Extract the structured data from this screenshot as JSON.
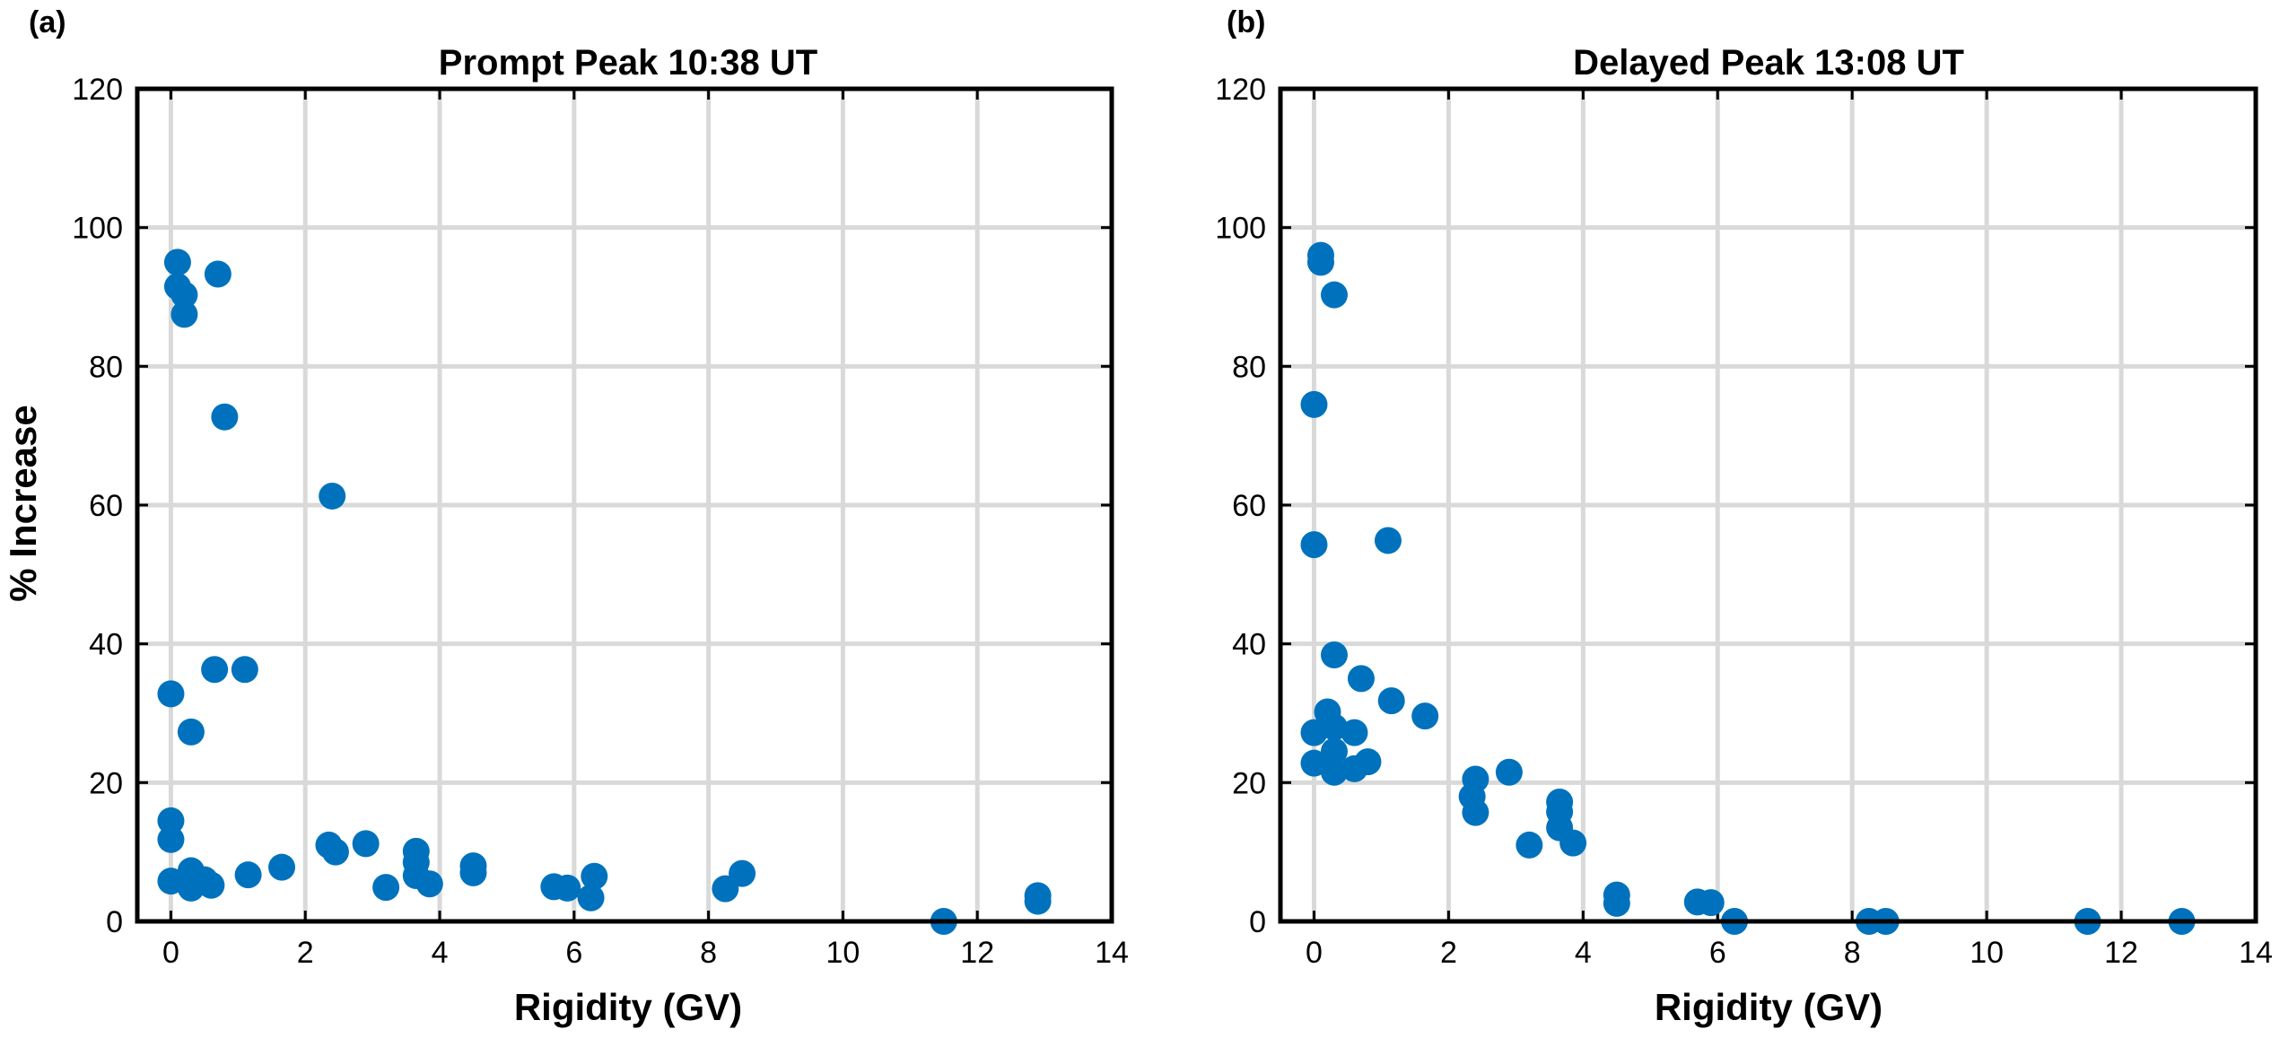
{
  "style": {
    "marker_color": "#0072BD",
    "grid_color": "#d9d9d9",
    "axis_color": "#000000"
  },
  "chart_data": [
    {
      "type": "scatter",
      "panel_label": "(a)",
      "title": "Prompt Peak 10:38 UT",
      "xlabel": "Rigidity (GV)",
      "ylabel": "% Increase",
      "xlim": [
        -0.5,
        14
      ],
      "ylim": [
        0,
        120
      ],
      "xticks": [
        0,
        2,
        4,
        6,
        8,
        10,
        12,
        14
      ],
      "yticks": [
        0,
        20,
        40,
        60,
        80,
        100,
        120
      ],
      "grid": true,
      "series": [
        {
          "points": [
            [
              0.1,
              95
            ],
            [
              0.1,
              91.5
            ],
            [
              0.2,
              90.3
            ],
            [
              0.2,
              87.5
            ],
            [
              0.7,
              93.3
            ],
            [
              0.8,
              72.7
            ],
            [
              2.4,
              61.3
            ],
            [
              0.0,
              32.8
            ],
            [
              0.3,
              27.3
            ],
            [
              0.65,
              36.3
            ],
            [
              1.1,
              36.3
            ],
            [
              0.0,
              14.5
            ],
            [
              0.0,
              11.8
            ],
            [
              0.0,
              5.8
            ],
            [
              0.3,
              7.3
            ],
            [
              0.3,
              4.8
            ],
            [
              0.5,
              6.0
            ],
            [
              0.6,
              5.2
            ],
            [
              1.15,
              6.7
            ],
            [
              1.65,
              7.8
            ],
            [
              2.35,
              11.0
            ],
            [
              2.45,
              10.0
            ],
            [
              2.9,
              11.2
            ],
            [
              3.2,
              4.9
            ],
            [
              3.65,
              10.1
            ],
            [
              3.65,
              8.5
            ],
            [
              3.65,
              6.6
            ],
            [
              3.85,
              5.4
            ],
            [
              4.5,
              8.0
            ],
            [
              4.5,
              7.0
            ],
            [
              5.7,
              5.0
            ],
            [
              5.9,
              4.8
            ],
            [
              6.3,
              6.5
            ],
            [
              6.25,
              3.4
            ],
            [
              8.25,
              4.7
            ],
            [
              8.5,
              6.9
            ],
            [
              11.5,
              0.0
            ],
            [
              12.9,
              3.7
            ],
            [
              12.9,
              2.9
            ]
          ]
        }
      ]
    },
    {
      "type": "scatter",
      "panel_label": "(b)",
      "title": "Delayed Peak 13:08 UT",
      "xlabel": "Rigidity (GV)",
      "ylabel": "",
      "xlim": [
        -0.5,
        14
      ],
      "ylim": [
        0,
        120
      ],
      "xticks": [
        0,
        2,
        4,
        6,
        8,
        10,
        12,
        14
      ],
      "yticks": [
        0,
        20,
        40,
        60,
        80,
        100,
        120
      ],
      "grid": true,
      "series": [
        {
          "points": [
            [
              0.1,
              96.0
            ],
            [
              0.1,
              95.0
            ],
            [
              0.3,
              90.3
            ],
            [
              0.0,
              74.5
            ],
            [
              0.0,
              54.3
            ],
            [
              1.1,
              54.9
            ],
            [
              0.3,
              38.4
            ],
            [
              0.7,
              35.0
            ],
            [
              1.15,
              31.8
            ],
            [
              1.65,
              29.6
            ],
            [
              0.0,
              27.2
            ],
            [
              0.2,
              30.2
            ],
            [
              0.3,
              28.0
            ],
            [
              0.6,
              27.2
            ],
            [
              0.0,
              22.8
            ],
            [
              0.3,
              24.5
            ],
            [
              0.3,
              21.5
            ],
            [
              0.6,
              22.0
            ],
            [
              0.8,
              23.0
            ],
            [
              2.4,
              20.5
            ],
            [
              2.35,
              18.0
            ],
            [
              2.4,
              15.7
            ],
            [
              2.9,
              21.5
            ],
            [
              3.2,
              11.0
            ],
            [
              3.65,
              17.2
            ],
            [
              3.65,
              15.8
            ],
            [
              3.65,
              13.5
            ],
            [
              3.85,
              11.3
            ],
            [
              4.5,
              3.8
            ],
            [
              4.5,
              2.6
            ],
            [
              5.7,
              2.8
            ],
            [
              5.9,
              2.7
            ],
            [
              6.25,
              0.0
            ],
            [
              8.25,
              0.0
            ],
            [
              8.5,
              0.0
            ],
            [
              11.5,
              0.0
            ],
            [
              12.9,
              0.0
            ]
          ]
        }
      ]
    }
  ]
}
